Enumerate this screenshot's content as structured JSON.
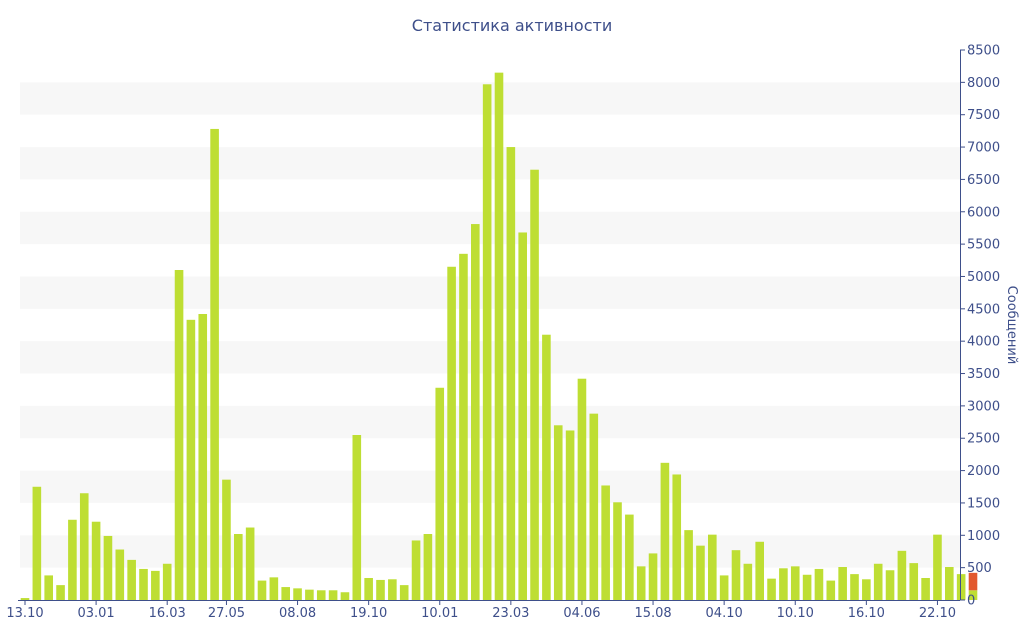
{
  "chart_data": {
    "type": "bar",
    "title": "Статистика активности",
    "ylabel": "Сообщений",
    "xlabel": "",
    "ylim": [
      0,
      8500
    ],
    "ytick_step": 500,
    "y_axis_side": "right",
    "grid": "alternating horizontal bands",
    "x_tick_labels": [
      {
        "index": 0,
        "label": "13.10"
      },
      {
        "index": 6,
        "label": "03.01"
      },
      {
        "index": 12,
        "label": "16.03"
      },
      {
        "index": 17,
        "label": "27.05"
      },
      {
        "index": 23,
        "label": "08.08"
      },
      {
        "index": 29,
        "label": "19.10"
      },
      {
        "index": 35,
        "label": "10.01"
      },
      {
        "index": 41,
        "label": "23.03"
      },
      {
        "index": 47,
        "label": "04.06"
      },
      {
        "index": 53,
        "label": "15.08"
      },
      {
        "index": 59,
        "label": "04.10"
      },
      {
        "index": 65,
        "label": "10.10"
      },
      {
        "index": 71,
        "label": "16.10"
      },
      {
        "index": 77,
        "label": "22.10"
      }
    ],
    "series": [
      {
        "color": "#bede33",
        "values": [
          30,
          1750,
          380,
          230,
          1240,
          1650,
          1210,
          990,
          780,
          620,
          480,
          450,
          560,
          5100,
          4330,
          4420,
          7280,
          1860,
          1020,
          1120,
          300,
          350,
          200,
          180,
          160,
          150,
          150,
          120,
          2550,
          340,
          310,
          320,
          230,
          920,
          1020,
          3280,
          5150,
          5350,
          5810,
          7970,
          8150,
          7000,
          5680,
          6650,
          4100,
          2700,
          2620,
          3420,
          2880,
          1770,
          1510,
          1320,
          520,
          720,
          2120,
          1940,
          1080,
          840,
          1010,
          380,
          770,
          560,
          900,
          330,
          490,
          520,
          390,
          480,
          300,
          510,
          400,
          320,
          560,
          460,
          760,
          570,
          340,
          1010,
          510,
          400,
          150
        ]
      },
      {
        "color": "#e2582e",
        "values": [
          0,
          0,
          0,
          0,
          0,
          0,
          0,
          0,
          0,
          0,
          0,
          0,
          0,
          0,
          0,
          0,
          0,
          0,
          0,
          0,
          0,
          0,
          0,
          0,
          0,
          0,
          0,
          0,
          0,
          0,
          0,
          0,
          0,
          0,
          0,
          0,
          0,
          0,
          0,
          0,
          0,
          0,
          0,
          0,
          0,
          0,
          0,
          0,
          0,
          0,
          0,
          0,
          0,
          0,
          0,
          0,
          0,
          0,
          0,
          0,
          0,
          0,
          0,
          0,
          0,
          0,
          0,
          0,
          0,
          0,
          0,
          0,
          0,
          0,
          0,
          0,
          0,
          0,
          0,
          0,
          270
        ]
      }
    ]
  },
  "colors": {
    "text": "#3e4f8a",
    "band": "#f7f7f7",
    "axis": "#3e4f8a"
  }
}
